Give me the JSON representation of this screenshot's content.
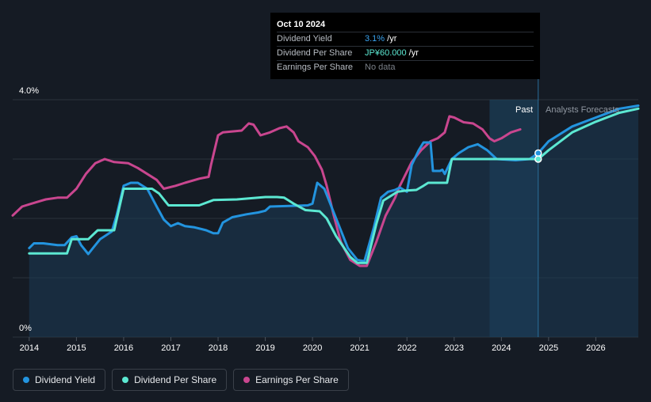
{
  "tooltip": {
    "date": "Oct 10 2024",
    "rows": [
      {
        "label": "Dividend Yield",
        "value": "3.1%",
        "unit": " /yr"
      },
      {
        "label": "Dividend Per Share",
        "value": "JP¥60.000",
        "unit": " /yr"
      },
      {
        "label": "Earnings Per Share",
        "value": "No data",
        "unit": ""
      }
    ]
  },
  "regions": {
    "past": "Past",
    "forecast": "Analysts Forecasts"
  },
  "legend": [
    {
      "label": "Dividend Yield",
      "color": "#2394df"
    },
    {
      "label": "Dividend Per Share",
      "color": "#5ce8d2"
    },
    {
      "label": "Earnings Per Share",
      "color": "#c9468f"
    }
  ],
  "chart_data": {
    "type": "line",
    "title": "",
    "xlabel": "",
    "ylabel": "",
    "x_ticks": [
      "2014",
      "2015",
      "2016",
      "2017",
      "2018",
      "2019",
      "2020",
      "2021",
      "2022",
      "2023",
      "2024",
      "2025",
      "2026"
    ],
    "x_range": [
      2013.65,
      2026.9
    ],
    "y_ticks": [
      "0%",
      "4.0%"
    ],
    "ylim": [
      0,
      4.0
    ],
    "past_forecast_split": 2024.78,
    "past_region_start": 2023.75,
    "marker_date": 2024.78,
    "series": [
      {
        "name": "Dividend Yield",
        "color": "#2394df",
        "points": [
          [
            2014.0,
            1.5
          ],
          [
            2014.1,
            1.58
          ],
          [
            2014.3,
            1.58
          ],
          [
            2014.6,
            1.55
          ],
          [
            2014.75,
            1.55
          ],
          [
            2014.9,
            1.68
          ],
          [
            2015.0,
            1.7
          ],
          [
            2015.1,
            1.55
          ],
          [
            2015.25,
            1.4
          ],
          [
            2015.35,
            1.5
          ],
          [
            2015.5,
            1.65
          ],
          [
            2015.75,
            1.78
          ],
          [
            2015.85,
            2.05
          ],
          [
            2016.0,
            2.55
          ],
          [
            2016.15,
            2.6
          ],
          [
            2016.3,
            2.6
          ],
          [
            2016.5,
            2.5
          ],
          [
            2016.7,
            2.2
          ],
          [
            2016.85,
            1.98
          ],
          [
            2017.0,
            1.87
          ],
          [
            2017.15,
            1.92
          ],
          [
            2017.3,
            1.87
          ],
          [
            2017.5,
            1.85
          ],
          [
            2017.75,
            1.8
          ],
          [
            2017.9,
            1.75
          ],
          [
            2018.0,
            1.75
          ],
          [
            2018.1,
            1.93
          ],
          [
            2018.3,
            2.02
          ],
          [
            2018.6,
            2.07
          ],
          [
            2018.85,
            2.1
          ],
          [
            2019.0,
            2.13
          ],
          [
            2019.1,
            2.2
          ],
          [
            2019.5,
            2.21
          ],
          [
            2019.9,
            2.22
          ],
          [
            2020.0,
            2.25
          ],
          [
            2020.1,
            2.6
          ],
          [
            2020.25,
            2.5
          ],
          [
            2020.5,
            2.0
          ],
          [
            2020.75,
            1.5
          ],
          [
            2020.95,
            1.3
          ],
          [
            2021.1,
            1.28
          ],
          [
            2021.3,
            1.85
          ],
          [
            2021.45,
            2.35
          ],
          [
            2021.6,
            2.45
          ],
          [
            2021.75,
            2.48
          ],
          [
            2021.85,
            2.52
          ],
          [
            2022.0,
            2.45
          ],
          [
            2022.1,
            2.9
          ],
          [
            2022.25,
            3.15
          ],
          [
            2022.35,
            3.28
          ],
          [
            2022.5,
            3.28
          ],
          [
            2022.55,
            2.8
          ],
          [
            2022.7,
            2.8
          ],
          [
            2022.75,
            2.82
          ],
          [
            2022.8,
            2.75
          ],
          [
            2022.95,
            3.0
          ],
          [
            2023.1,
            3.1
          ],
          [
            2023.3,
            3.2
          ],
          [
            2023.5,
            3.25
          ],
          [
            2023.7,
            3.15
          ],
          [
            2023.9,
            3.0
          ],
          [
            2024.3,
            2.98
          ],
          [
            2024.6,
            3.0
          ],
          [
            2024.78,
            3.1
          ],
          [
            2025.0,
            3.3
          ],
          [
            2025.5,
            3.55
          ],
          [
            2026.0,
            3.7
          ],
          [
            2026.5,
            3.85
          ],
          [
            2026.9,
            3.9
          ]
        ]
      },
      {
        "name": "Dividend Per Share",
        "color": "#5ce8d2",
        "points": [
          [
            2014.0,
            1.41
          ],
          [
            2014.8,
            1.41
          ],
          [
            2014.9,
            1.65
          ],
          [
            2015.25,
            1.65
          ],
          [
            2015.45,
            1.8
          ],
          [
            2015.8,
            1.8
          ],
          [
            2016.0,
            2.5
          ],
          [
            2016.6,
            2.5
          ],
          [
            2016.75,
            2.42
          ],
          [
            2016.95,
            2.22
          ],
          [
            2017.6,
            2.22
          ],
          [
            2017.9,
            2.31
          ],
          [
            2018.4,
            2.32
          ],
          [
            2019.0,
            2.36
          ],
          [
            2019.25,
            2.36
          ],
          [
            2019.4,
            2.35
          ],
          [
            2019.6,
            2.25
          ],
          [
            2019.85,
            2.14
          ],
          [
            2020.15,
            2.12
          ],
          [
            2020.3,
            2.0
          ],
          [
            2020.5,
            1.7
          ],
          [
            2020.8,
            1.35
          ],
          [
            2020.95,
            1.25
          ],
          [
            2021.15,
            1.25
          ],
          [
            2021.35,
            1.9
          ],
          [
            2021.5,
            2.3
          ],
          [
            2021.8,
            2.45
          ],
          [
            2022.0,
            2.47
          ],
          [
            2022.2,
            2.48
          ],
          [
            2022.35,
            2.55
          ],
          [
            2022.45,
            2.6
          ],
          [
            2022.85,
            2.6
          ],
          [
            2022.95,
            3.0
          ],
          [
            2023.2,
            3.0
          ],
          [
            2024.78,
            3.0
          ],
          [
            2025.0,
            3.15
          ],
          [
            2025.5,
            3.45
          ],
          [
            2026.0,
            3.63
          ],
          [
            2026.5,
            3.78
          ],
          [
            2026.9,
            3.85
          ]
        ]
      },
      {
        "name": "Earnings Per Share",
        "color": "#c9468f",
        "points": [
          [
            2013.65,
            2.05
          ],
          [
            2013.85,
            2.2
          ],
          [
            2014.05,
            2.25
          ],
          [
            2014.35,
            2.32
          ],
          [
            2014.6,
            2.35
          ],
          [
            2014.8,
            2.35
          ],
          [
            2015.0,
            2.5
          ],
          [
            2015.2,
            2.75
          ],
          [
            2015.4,
            2.93
          ],
          [
            2015.6,
            3.0
          ],
          [
            2015.8,
            2.95
          ],
          [
            2016.1,
            2.93
          ],
          [
            2016.3,
            2.85
          ],
          [
            2016.5,
            2.75
          ],
          [
            2016.7,
            2.65
          ],
          [
            2016.85,
            2.5
          ],
          [
            2017.1,
            2.55
          ],
          [
            2017.3,
            2.6
          ],
          [
            2017.6,
            2.67
          ],
          [
            2017.8,
            2.7
          ],
          [
            2017.85,
            2.9
          ],
          [
            2018.0,
            3.4
          ],
          [
            2018.1,
            3.45
          ],
          [
            2018.5,
            3.48
          ],
          [
            2018.65,
            3.6
          ],
          [
            2018.75,
            3.58
          ],
          [
            2018.9,
            3.4
          ],
          [
            2019.1,
            3.45
          ],
          [
            2019.3,
            3.52
          ],
          [
            2019.45,
            3.55
          ],
          [
            2019.6,
            3.45
          ],
          [
            2019.7,
            3.3
          ],
          [
            2019.9,
            3.2
          ],
          [
            2020.05,
            3.05
          ],
          [
            2020.2,
            2.82
          ],
          [
            2020.3,
            2.55
          ],
          [
            2020.45,
            2.05
          ],
          [
            2020.6,
            1.6
          ],
          [
            2020.8,
            1.3
          ],
          [
            2021.0,
            1.2
          ],
          [
            2021.15,
            1.2
          ],
          [
            2021.35,
            1.6
          ],
          [
            2021.55,
            2.05
          ],
          [
            2021.75,
            2.35
          ],
          [
            2021.85,
            2.55
          ],
          [
            2022.1,
            2.95
          ],
          [
            2022.3,
            3.15
          ],
          [
            2022.5,
            3.3
          ],
          [
            2022.65,
            3.35
          ],
          [
            2022.8,
            3.45
          ],
          [
            2022.9,
            3.72
          ],
          [
            2023.0,
            3.7
          ],
          [
            2023.2,
            3.62
          ],
          [
            2023.4,
            3.6
          ],
          [
            2023.6,
            3.5
          ],
          [
            2023.75,
            3.35
          ],
          [
            2023.85,
            3.3
          ],
          [
            2024.0,
            3.35
          ],
          [
            2024.2,
            3.45
          ],
          [
            2024.4,
            3.5
          ]
        ]
      }
    ]
  }
}
